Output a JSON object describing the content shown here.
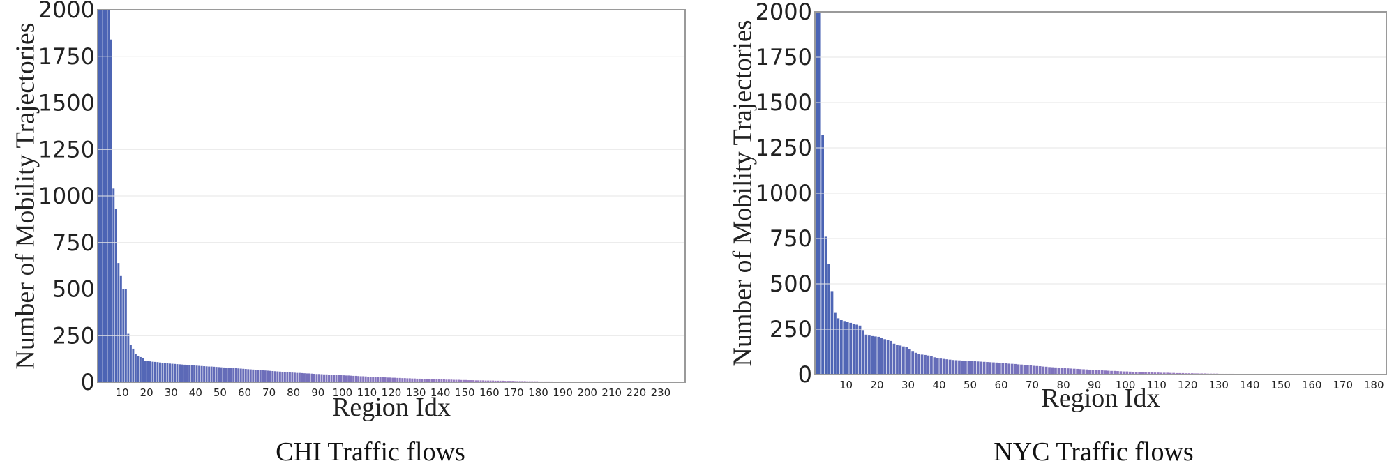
{
  "chart_data": [
    {
      "type": "bar",
      "caption": "CHI Traffic flows",
      "xlabel": "Region Idx",
      "ylabel": "Number of Mobility Trajectories",
      "ylim": [
        0,
        2000
      ],
      "yticks": [
        0,
        250,
        500,
        750,
        1000,
        1250,
        1500,
        1750,
        2000
      ],
      "xticks": [
        10,
        20,
        30,
        40,
        50,
        60,
        70,
        80,
        90,
        100,
        110,
        120,
        130,
        140,
        150,
        160,
        170,
        180,
        190,
        200,
        210,
        220,
        230
      ],
      "x_range": [
        0,
        240
      ],
      "grid": true,
      "colors": [
        "#4a64b4",
        "#c889c9"
      ],
      "values": [
        2000,
        2000,
        2000,
        2000,
        2000,
        1840,
        1040,
        930,
        640,
        570,
        500,
        500,
        260,
        200,
        180,
        150,
        140,
        135,
        130,
        115,
        113,
        112,
        110,
        109,
        108,
        106,
        104,
        103,
        101,
        100,
        99,
        98,
        97,
        96,
        95,
        94,
        93,
        92,
        91,
        90,
        89,
        88,
        87,
        86,
        85,
        84,
        84,
        83,
        82,
        81,
        80,
        79,
        78,
        77,
        76,
        76,
        75,
        74,
        73,
        72,
        71,
        70,
        69,
        68,
        67,
        66,
        65,
        64,
        63,
        62,
        61,
        60,
        59,
        58,
        57,
        56,
        55,
        54,
        53,
        52,
        51,
        50,
        50,
        49,
        48,
        47,
        47,
        46,
        45,
        44,
        44,
        43,
        42,
        42,
        41,
        40,
        40,
        39,
        38,
        38,
        37,
        36,
        36,
        35,
        34,
        34,
        33,
        32,
        32,
        31,
        30,
        30,
        29,
        28,
        28,
        27,
        27,
        26,
        25,
        25,
        24,
        24,
        23,
        23,
        22,
        22,
        21,
        21,
        20,
        20,
        19,
        19,
        18,
        18,
        18,
        17,
        17,
        16,
        16,
        16,
        15,
        15,
        14,
        14,
        14,
        13,
        13,
        13,
        12,
        12,
        12,
        11,
        11,
        11,
        10,
        10,
        10,
        10,
        9,
        9,
        9,
        9,
        8,
        8,
        8,
        8,
        7,
        7,
        7,
        7,
        6,
        6,
        6,
        6,
        6,
        5,
        5,
        5,
        5,
        5,
        4,
        4,
        4,
        4,
        4,
        4,
        3,
        3,
        3,
        3,
        3,
        3,
        3,
        2,
        2,
        2,
        2,
        2,
        2,
        2,
        2,
        1,
        1,
        1,
        1,
        1,
        1,
        1,
        1,
        1,
        1,
        1,
        1,
        1,
        1,
        1,
        0,
        0,
        0,
        0,
        0,
        0,
        0,
        0,
        0,
        0,
        0,
        0,
        0,
        0,
        0,
        0,
        0,
        0,
        0,
        0,
        0,
        0,
        0,
        0,
        0,
        0,
        0,
        0,
        0,
        0
      ]
    },
    {
      "type": "bar",
      "caption": "NYC Traffic flows",
      "xlabel": "Region Idx",
      "ylabel": "Number of Mobility Trajectories",
      "ylim": [
        0,
        2000
      ],
      "yticks": [
        0,
        250,
        500,
        750,
        1000,
        1250,
        1500,
        1750,
        2000
      ],
      "xticks": [
        10,
        20,
        30,
        40,
        50,
        60,
        70,
        80,
        90,
        100,
        110,
        120,
        130,
        140,
        150,
        160,
        170,
        180
      ],
      "x_range": [
        0,
        184
      ],
      "grid": true,
      "colors": [
        "#4a64b4",
        "#c889c9"
      ],
      "values": [
        2000,
        2000,
        1320,
        760,
        610,
        460,
        340,
        310,
        300,
        295,
        290,
        285,
        280,
        275,
        270,
        245,
        220,
        215,
        212,
        210,
        208,
        200,
        195,
        190,
        185,
        170,
        162,
        160,
        155,
        150,
        140,
        130,
        120,
        115,
        110,
        108,
        105,
        100,
        95,
        90,
        88,
        86,
        84,
        82,
        80,
        79,
        78,
        77,
        76,
        75,
        74,
        73,
        72,
        71,
        70,
        69,
        68,
        67,
        66,
        65,
        64,
        62,
        60,
        59,
        58,
        56,
        55,
        53,
        52,
        50,
        48,
        47,
        46,
        44,
        43,
        41,
        40,
        39,
        38,
        36,
        35,
        34,
        33,
        32,
        31,
        30,
        29,
        28,
        27,
        26,
        25,
        24,
        23,
        22,
        21,
        20,
        20,
        19,
        18,
        17,
        17,
        16,
        15,
        15,
        14,
        13,
        13,
        12,
        12,
        11,
        11,
        10,
        10,
        10,
        9,
        9,
        8,
        8,
        8,
        7,
        7,
        7,
        6,
        6,
        6,
        6,
        5,
        5,
        5,
        5,
        4,
        4,
        4,
        4,
        4,
        3,
        3,
        3,
        3,
        3,
        3,
        2,
        2,
        2,
        2,
        2,
        2,
        2,
        2,
        1,
        1,
        1,
        1,
        1,
        1,
        1,
        1,
        1,
        1,
        1,
        0,
        0,
        0,
        0,
        0,
        0,
        0,
        0,
        0,
        0,
        0,
        0,
        0,
        0,
        0,
        0,
        0,
        0,
        0,
        0,
        0,
        0,
        0,
        0
      ]
    }
  ]
}
